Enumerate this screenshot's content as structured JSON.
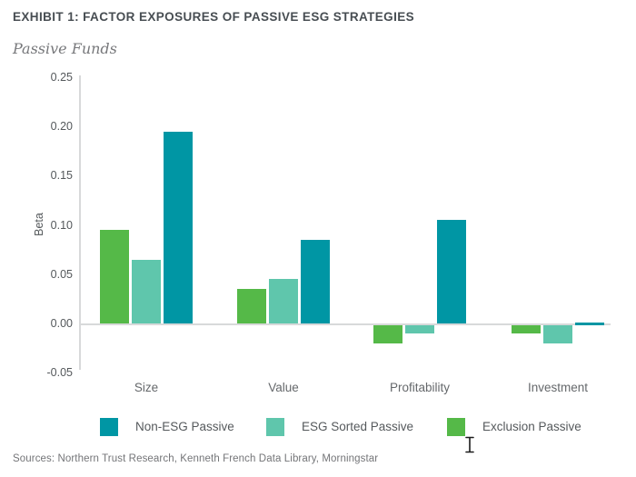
{
  "header": {
    "title": "EXHIBIT 1: FACTOR EXPOSURES OF PASSIVE ESG STRATEGIES",
    "subtitle": "Passive Funds"
  },
  "chart_data": {
    "type": "bar",
    "title": "Passive Funds",
    "xlabel": "",
    "ylabel": "Beta",
    "categories": [
      "Size",
      "Value",
      "Profitability",
      "Investment"
    ],
    "series": [
      {
        "name": "Non-ESG Passive",
        "color": "#0096a4",
        "values": [
          0.195,
          0.085,
          0.105,
          0.0
        ]
      },
      {
        "name": "ESG Sorted Passive",
        "color": "#5fc6ac",
        "values": [
          0.065,
          0.045,
          -0.01,
          -0.02
        ]
      },
      {
        "name": "Exclusion Passive",
        "color": "#55b948",
        "values": [
          0.095,
          0.035,
          -0.02,
          -0.01
        ]
      }
    ],
    "bar_display_order_left_to_right": [
      "Exclusion Passive",
      "ESG Sorted Passive",
      "Non-ESG Passive"
    ],
    "ylim": [
      -0.05,
      0.25
    ],
    "yticks": [
      0.25,
      0.2,
      0.15,
      0.1,
      0.05,
      0.0,
      -0.05
    ],
    "ytick_labels": [
      "0.25",
      "0.20",
      "0.15",
      "0.10",
      "0.05",
      "0.00",
      "-0.05"
    ],
    "grid": false,
    "legend_position": "bottom",
    "axis_color": "#d8d9da"
  },
  "legend": {
    "items": [
      {
        "label": "Non-ESG Passive",
        "color": "#0096a4"
      },
      {
        "label": "ESG Sorted Passive",
        "color": "#5fc6ac"
      },
      {
        "label": "Exclusion Passive",
        "color": "#55b948"
      }
    ]
  },
  "footer": {
    "sources": "Sources: Northern Trust Research, Kenneth French Data Library, Morningstar"
  },
  "cursor": {
    "type": "text-ibeam"
  }
}
